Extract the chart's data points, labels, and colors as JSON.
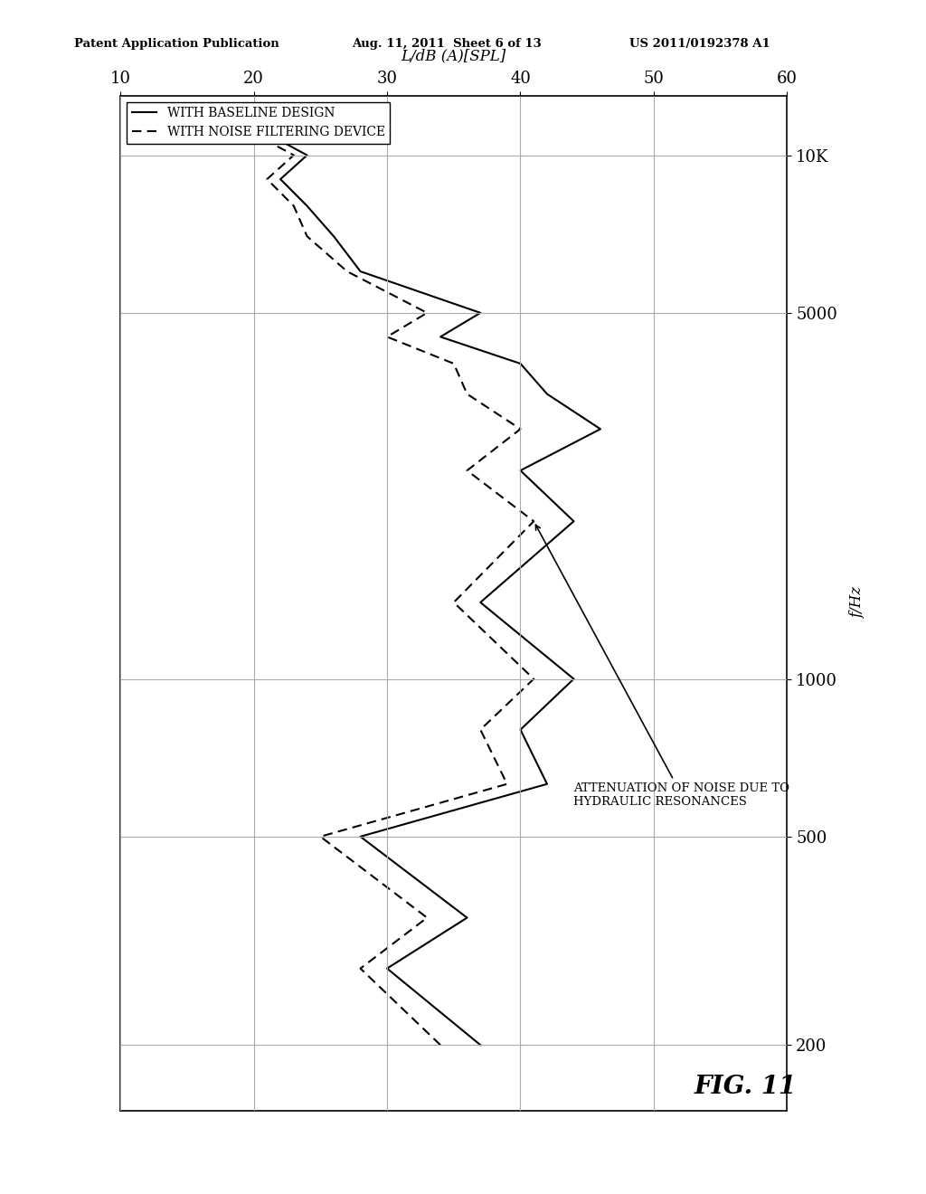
{
  "title_header_left": "Patent Application Publication",
  "title_header_mid": "Aug. 11, 2011  Sheet 6 of 13",
  "title_header_right": "US 2011/0192378 A1",
  "fig_label": "FIG. 11",
  "ylabel_rotated": "L/dB (A)[SPL]",
  "xlabel_rotated": "f/Hz",
  "ylim": [
    10,
    60
  ],
  "yticks": [
    10,
    20,
    30,
    40,
    50,
    60
  ],
  "xtick_labels": [
    "200",
    "500",
    "1000",
    "5000",
    "10K"
  ],
  "xtick_positions": [
    200,
    500,
    1000,
    5000,
    10000
  ],
  "xlim": [
    150,
    13000
  ],
  "legend_solid": "WITH BASELINE DESIGN",
  "legend_dashed": "WITH NOISE FILTERING DEVICE",
  "annotation_text": "ATTENUATION OF NOISE DUE TO\nHYDRAULIC RESONANCES",
  "background_color": "#ffffff",
  "line_color": "#000000",
  "solid_x": [
    200,
    280,
    350,
    500,
    630,
    800,
    1000,
    1400,
    2000,
    2500,
    3000,
    3500,
    4000,
    4500,
    5000,
    6000,
    7000,
    8000,
    9000,
    10000,
    11000
  ],
  "solid_y": [
    37,
    30,
    36,
    28,
    42,
    40,
    44,
    37,
    44,
    40,
    46,
    42,
    40,
    34,
    37,
    28,
    26,
    24,
    22,
    24,
    21
  ],
  "dashed_x": [
    200,
    280,
    350,
    500,
    630,
    800,
    1000,
    1400,
    2000,
    2500,
    3000,
    3500,
    4000,
    4500,
    5000,
    6000,
    7000,
    8000,
    9000,
    10000,
    11000
  ],
  "dashed_y": [
    34,
    28,
    33,
    25,
    39,
    37,
    41,
    35,
    41,
    36,
    40,
    36,
    35,
    30,
    33,
    27,
    24,
    23,
    21,
    23,
    20
  ]
}
